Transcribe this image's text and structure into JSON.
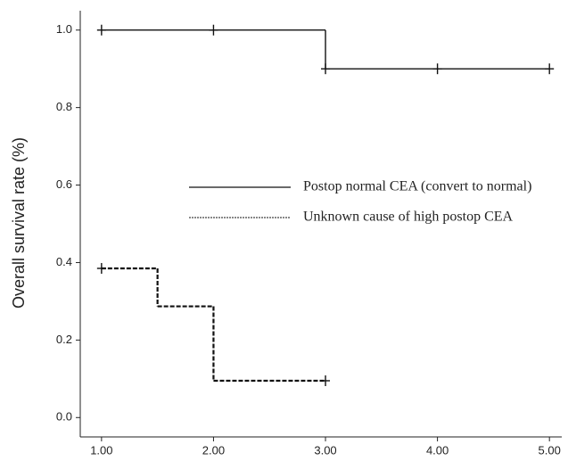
{
  "chart_data": {
    "type": "step",
    "y_label": "Overall survival rate (%)",
    "xlim": [
      0.81,
      5.11
    ],
    "ylim": [
      -0.05,
      1.05
    ],
    "xticks": [
      {
        "value": 1,
        "label": "1.00"
      },
      {
        "value": 2,
        "label": "2.00"
      },
      {
        "value": 3,
        "label": "3.00"
      },
      {
        "value": 4,
        "label": "4.00"
      },
      {
        "value": 5,
        "label": "5.00"
      }
    ],
    "yticks": [
      {
        "value": 0,
        "label": "0.0"
      },
      0.2,
      0.4,
      0.6,
      0.8,
      {
        "value": 1,
        "label": "1.0"
      }
    ],
    "series": [
      {
        "name": "Postop normal CEA (convert to normal)",
        "color": "#111111",
        "dash": "none",
        "x": [
          1,
          2,
          3,
          4,
          5
        ],
        "values": [
          1.0,
          1.0,
          0.9,
          0.9,
          0.9
        ],
        "censored": [
          true,
          true,
          true,
          true,
          true
        ]
      },
      {
        "name": "Unknown cause of high postop CEA",
        "color": "#111111",
        "dash": "5,2",
        "x": [
          1,
          1.5,
          2,
          3
        ],
        "values": [
          0.385,
          0.287,
          0.095,
          0.095
        ],
        "censored": [
          true,
          false,
          false,
          true
        ]
      }
    ]
  }
}
